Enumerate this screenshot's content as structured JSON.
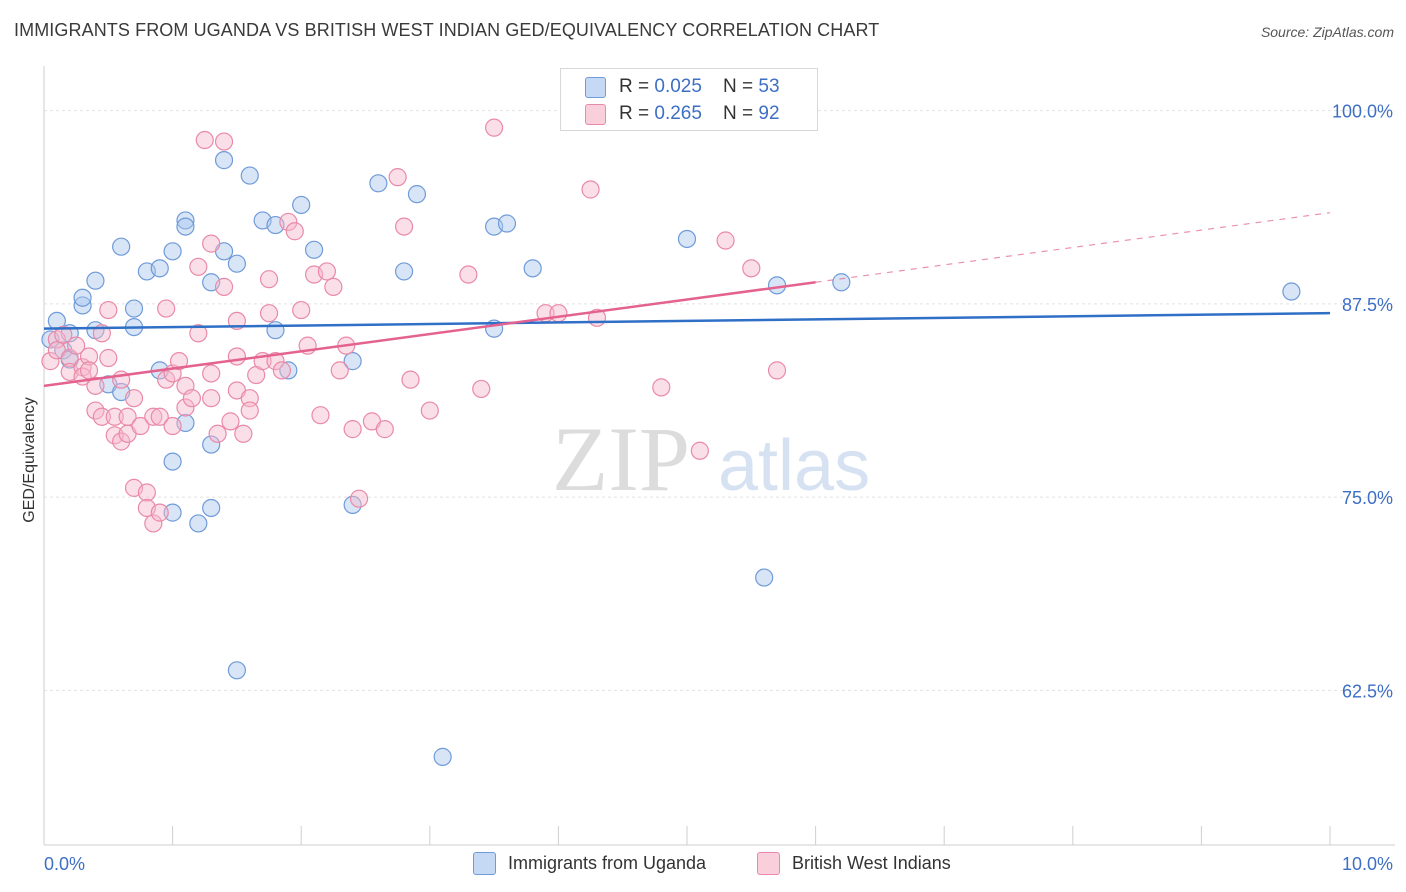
{
  "title": "IMMIGRANTS FROM UGANDA VS BRITISH WEST INDIAN GED/EQUIVALENCY CORRELATION CHART",
  "source": "Source: ZipAtlas.com",
  "watermark": {
    "zip": "ZIP",
    "atlas": "atlas"
  },
  "colors": {
    "blue_fill": "#a9c6ee",
    "blue_stroke": "#6f9bd8",
    "blue_line": "#2f6fc6",
    "pink_fill": "#f6b8cc",
    "pink_stroke": "#e98aa8",
    "pink_line": "#e4628f",
    "tick_label": "#3d6fc4",
    "grid": "#e2e2e2"
  },
  "legend": {
    "rows": [
      {
        "r_label": "R = ",
        "r_value": "0.025",
        "n_label": "N = ",
        "n_value": "53"
      },
      {
        "r_label": "R = ",
        "r_value": "0.265",
        "n_label": "N = ",
        "n_value": "92"
      }
    ]
  },
  "chart_data": {
    "type": "scatter",
    "title": "IMMIGRANTS FROM UGANDA VS BRITISH WEST INDIAN GED/EQUIVALENCY CORRELATION CHART",
    "xlabel": "",
    "ylabel": "GED/Equivalency",
    "xlim": [
      0,
      10
    ],
    "ylim": [
      52.5,
      102.5
    ],
    "x_tick_labels": [
      "0.0%",
      "10.0%"
    ],
    "y_ticks": [
      62.5,
      75.0,
      87.5,
      100.0
    ],
    "y_tick_labels": [
      "62.5%",
      "75.0%",
      "87.5%",
      "100.0%"
    ],
    "grid": true,
    "legend_position": "top-center and bottom",
    "series": [
      {
        "name": "Immigrants from Uganda",
        "color": "#a9c6ee",
        "trend": {
          "x": [
            0.0,
            10.0
          ],
          "y": [
            85.9,
            86.9
          ]
        },
        "points": [
          [
            0.1,
            86.4
          ],
          [
            0.2,
            85.6
          ],
          [
            0.3,
            87.4
          ],
          [
            0.3,
            87.9
          ],
          [
            0.4,
            85.8
          ],
          [
            0.4,
            89.0
          ],
          [
            0.5,
            82.3
          ],
          [
            0.6,
            91.2
          ],
          [
            0.6,
            81.8
          ],
          [
            0.7,
            87.2
          ],
          [
            0.7,
            86.0
          ],
          [
            0.8,
            89.6
          ],
          [
            0.9,
            83.2
          ],
          [
            0.9,
            89.8
          ],
          [
            1.0,
            77.3
          ],
          [
            1.0,
            74.0
          ],
          [
            1.0,
            90.9
          ],
          [
            1.1,
            79.8
          ],
          [
            1.1,
            92.9
          ],
          [
            1.1,
            92.5
          ],
          [
            1.2,
            73.3
          ],
          [
            1.3,
            88.9
          ],
          [
            1.3,
            78.4
          ],
          [
            1.3,
            74.3
          ],
          [
            1.4,
            90.9
          ],
          [
            1.4,
            96.8
          ],
          [
            1.5,
            90.1
          ],
          [
            1.5,
            63.8
          ],
          [
            1.6,
            95.8
          ],
          [
            1.7,
            92.9
          ],
          [
            1.8,
            92.6
          ],
          [
            1.8,
            85.8
          ],
          [
            1.9,
            83.2
          ],
          [
            2.0,
            93.9
          ],
          [
            2.1,
            91.0
          ],
          [
            2.4,
            83.8
          ],
          [
            2.4,
            74.5
          ],
          [
            2.6,
            95.3
          ],
          [
            2.8,
            89.6
          ],
          [
            2.9,
            94.6
          ],
          [
            3.1,
            58.2
          ],
          [
            3.5,
            92.5
          ],
          [
            3.5,
            85.9
          ],
          [
            3.6,
            92.7
          ],
          [
            3.8,
            89.8
          ],
          [
            5.0,
            91.7
          ],
          [
            5.6,
            69.8
          ],
          [
            5.7,
            88.7
          ],
          [
            6.2,
            88.9
          ],
          [
            9.7,
            88.3
          ],
          [
            0.05,
            85.2
          ],
          [
            0.15,
            84.5
          ],
          [
            0.2,
            83.9
          ]
        ]
      },
      {
        "name": "British West Indians",
        "color": "#f6b8cc",
        "trend": {
          "x": [
            0.0,
            6.0
          ],
          "y": [
            82.2,
            88.9
          ],
          "dashed_to": {
            "x": 10.0,
            "y": 93.4
          }
        },
        "points": [
          [
            0.05,
            83.8
          ],
          [
            0.1,
            85.2
          ],
          [
            0.1,
            84.5
          ],
          [
            0.15,
            85.5
          ],
          [
            0.2,
            84.0
          ],
          [
            0.2,
            83.1
          ],
          [
            0.25,
            84.8
          ],
          [
            0.3,
            83.4
          ],
          [
            0.3,
            82.8
          ],
          [
            0.35,
            84.1
          ],
          [
            0.35,
            83.2
          ],
          [
            0.4,
            82.2
          ],
          [
            0.4,
            80.6
          ],
          [
            0.45,
            80.2
          ],
          [
            0.45,
            85.6
          ],
          [
            0.5,
            84.0
          ],
          [
            0.5,
            87.1
          ],
          [
            0.55,
            80.2
          ],
          [
            0.55,
            79.0
          ],
          [
            0.6,
            78.6
          ],
          [
            0.6,
            82.6
          ],
          [
            0.65,
            80.2
          ],
          [
            0.65,
            79.1
          ],
          [
            0.7,
            75.6
          ],
          [
            0.7,
            81.4
          ],
          [
            0.75,
            79.6
          ],
          [
            0.8,
            75.3
          ],
          [
            0.8,
            74.3
          ],
          [
            0.85,
            80.2
          ],
          [
            0.85,
            73.3
          ],
          [
            0.9,
            80.2
          ],
          [
            0.9,
            74.0
          ],
          [
            0.95,
            82.6
          ],
          [
            0.95,
            87.2
          ],
          [
            1.0,
            79.6
          ],
          [
            1.0,
            83.0
          ],
          [
            1.05,
            83.8
          ],
          [
            1.1,
            80.8
          ],
          [
            1.1,
            82.2
          ],
          [
            1.15,
            81.4
          ],
          [
            1.2,
            85.6
          ],
          [
            1.2,
            89.9
          ],
          [
            1.25,
            98.1
          ],
          [
            1.3,
            81.4
          ],
          [
            1.3,
            83.0
          ],
          [
            1.3,
            91.4
          ],
          [
            1.35,
            79.1
          ],
          [
            1.4,
            88.6
          ],
          [
            1.4,
            98.0
          ],
          [
            1.45,
            79.9
          ],
          [
            1.5,
            81.9
          ],
          [
            1.5,
            84.1
          ],
          [
            1.5,
            86.4
          ],
          [
            1.55,
            79.1
          ],
          [
            1.6,
            81.4
          ],
          [
            1.6,
            80.6
          ],
          [
            1.65,
            82.9
          ],
          [
            1.7,
            83.8
          ],
          [
            1.75,
            86.9
          ],
          [
            1.75,
            89.1
          ],
          [
            1.8,
            83.8
          ],
          [
            1.85,
            83.2
          ],
          [
            1.9,
            92.8
          ],
          [
            1.95,
            92.2
          ],
          [
            2.0,
            87.1
          ],
          [
            2.05,
            84.8
          ],
          [
            2.1,
            89.4
          ],
          [
            2.15,
            80.3
          ],
          [
            2.2,
            89.6
          ],
          [
            2.25,
            88.6
          ],
          [
            2.3,
            83.2
          ],
          [
            2.35,
            84.8
          ],
          [
            2.4,
            79.4
          ],
          [
            2.45,
            74.9
          ],
          [
            2.55,
            79.9
          ],
          [
            2.65,
            79.4
          ],
          [
            2.75,
            95.7
          ],
          [
            2.8,
            92.5
          ],
          [
            2.85,
            82.6
          ],
          [
            3.0,
            80.6
          ],
          [
            3.3,
            89.4
          ],
          [
            3.4,
            82.0
          ],
          [
            3.5,
            98.9
          ],
          [
            3.9,
            86.9
          ],
          [
            4.0,
            86.9
          ],
          [
            4.25,
            94.9
          ],
          [
            4.3,
            86.6
          ],
          [
            4.8,
            82.1
          ],
          [
            5.1,
            78.0
          ],
          [
            5.3,
            91.6
          ],
          [
            5.5,
            89.8
          ],
          [
            5.7,
            83.2
          ]
        ]
      }
    ]
  }
}
